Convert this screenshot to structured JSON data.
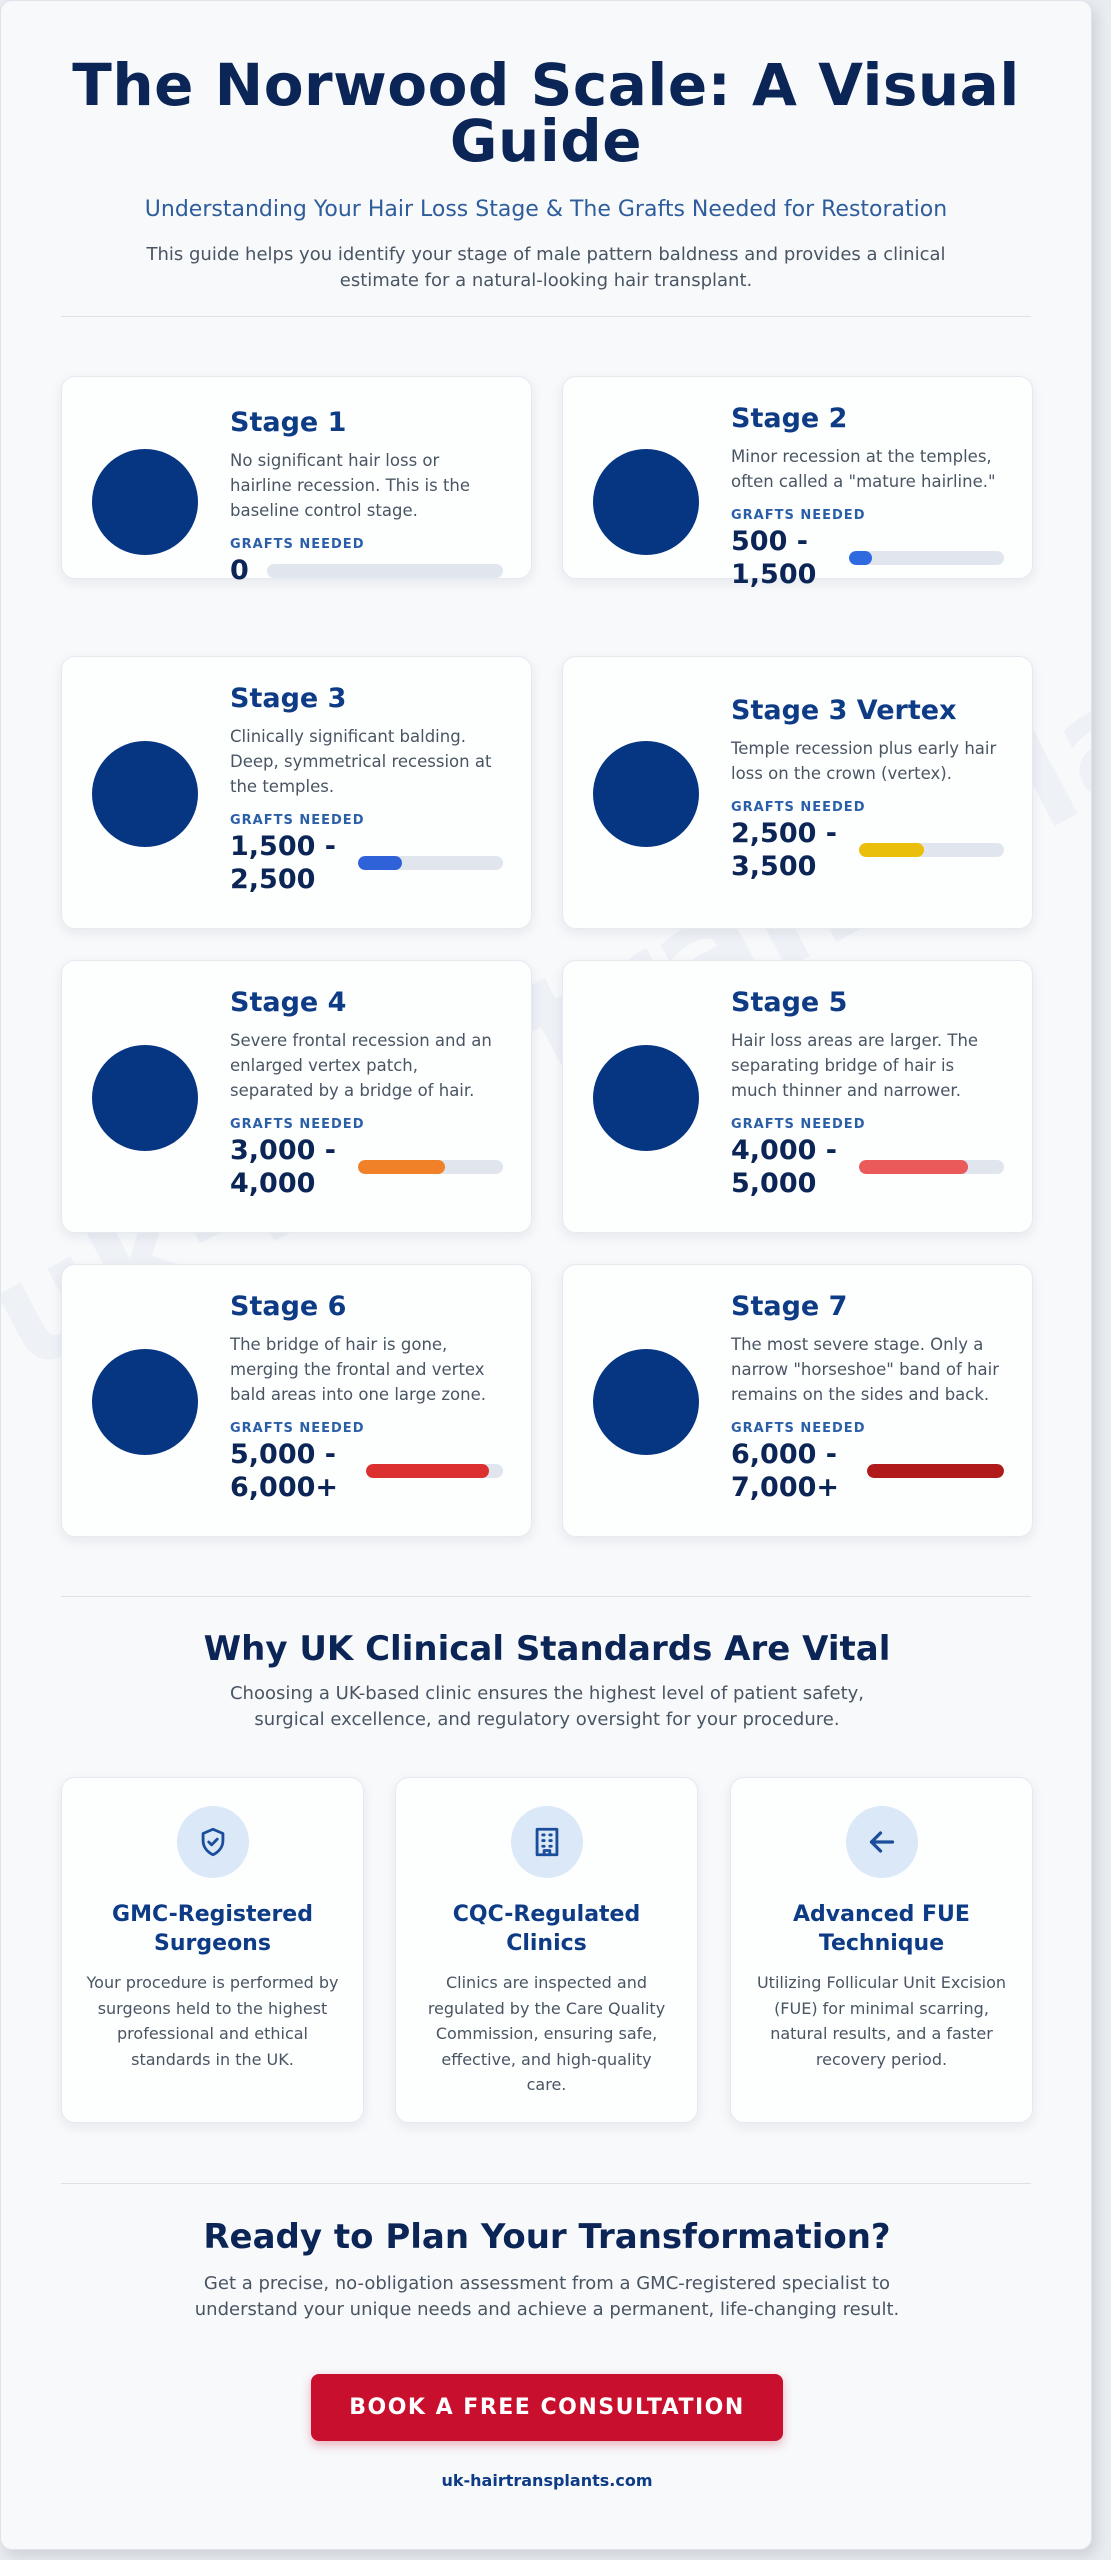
{
  "header": {
    "title": "The Norwood Scale: A Visual Guide",
    "subtitle": "Understanding Your Hair Loss Stage & The Grafts Needed for Restoration",
    "intro": "This guide helps you identify your stage of male pattern baldness and provides a clinical estimate for a natural-looking hair transplant."
  },
  "watermark": "uk-hairtransplants.com",
  "grafts_label": "GRAFTS NEEDED",
  "stages": [
    {
      "title": "Stage 1",
      "description": "No significant hair loss or hairline recession. This is the baseline control stage.",
      "grafts": "0",
      "level": 0,
      "bar_color": "#3b6fe0"
    },
    {
      "title": "Stage 2",
      "description": "Minor recession at the temples, often called a \"mature hairline.\"",
      "grafts": "500 - 1,500",
      "level": 0.15,
      "bar_color": "#2f6ae0"
    },
    {
      "title": "Stage 3",
      "description": "Clinically significant balding. Deep, symmetrical recession at the temples.",
      "grafts": "1,500 - 2,500",
      "level": 0.3,
      "bar_color": "#2f62d8"
    },
    {
      "title": "Stage 3 Vertex",
      "description": "Temple recession plus early hair loss on the crown (vertex).",
      "grafts": "2,500 - 3,500",
      "level": 0.45,
      "bar_color": "#eabf0c"
    },
    {
      "title": "Stage 4",
      "description": "Severe frontal recession and an enlarged vertex patch, separated by a bridge of hair.",
      "grafts": "3,000 - 4,000",
      "level": 0.6,
      "bar_color": "#f08128"
    },
    {
      "title": "Stage 5",
      "description": "Hair loss areas are larger. The separating bridge of hair is much thinner and narrower.",
      "grafts": "4,000 - 5,000",
      "level": 0.75,
      "bar_color": "#ea5a5a"
    },
    {
      "title": "Stage 6",
      "description": "The bridge of hair is gone, merging the frontal and vertex bald areas into one large zone.",
      "grafts": "5,000 - 6,000+",
      "level": 0.9,
      "bar_color": "#dc3030"
    },
    {
      "title": "Stage 7",
      "description": "The most severe stage. Only a narrow \"horseshoe\" band of hair remains on the sides and back.",
      "grafts": "6,000 - 7,000+",
      "level": 1.0,
      "bar_color": "#b01a1a"
    }
  ],
  "standards": {
    "title": "Why UK Clinical Standards Are Vital",
    "text": "Choosing a UK-based clinic ensures the highest level of patient safety, surgical excellence, and regulatory oversight for your procedure.",
    "features": [
      {
        "icon": "shield-check-icon",
        "title": "GMC-Registered Surgeons",
        "text": "Your procedure is performed by surgeons held to the highest professional and ethical standards in the UK."
      },
      {
        "icon": "building-icon",
        "title": "CQC-Regulated Clinics",
        "text": "Clinics are inspected and regulated by the Care Quality Commission, ensuring safe, effective, and high-quality care."
      },
      {
        "icon": "arrow-left-icon",
        "title": "Advanced FUE Technique",
        "text": "Utilizing Follicular Unit Excision (FUE) for minimal scarring, natural results, and a faster recovery period."
      }
    ]
  },
  "cta": {
    "title": "Ready to Plan Your Transformation?",
    "text": "Get a precise, no-obligation assessment from a GMC-registered specialist to understand your unique needs and achieve a permanent, life-changing result.",
    "button": "BOOK A FREE CONSULTATION",
    "link": "uk-hairtransplants.com"
  },
  "colors": {
    "primary": "#0b2556",
    "accent": "#c8102e",
    "circle": "#063681"
  }
}
